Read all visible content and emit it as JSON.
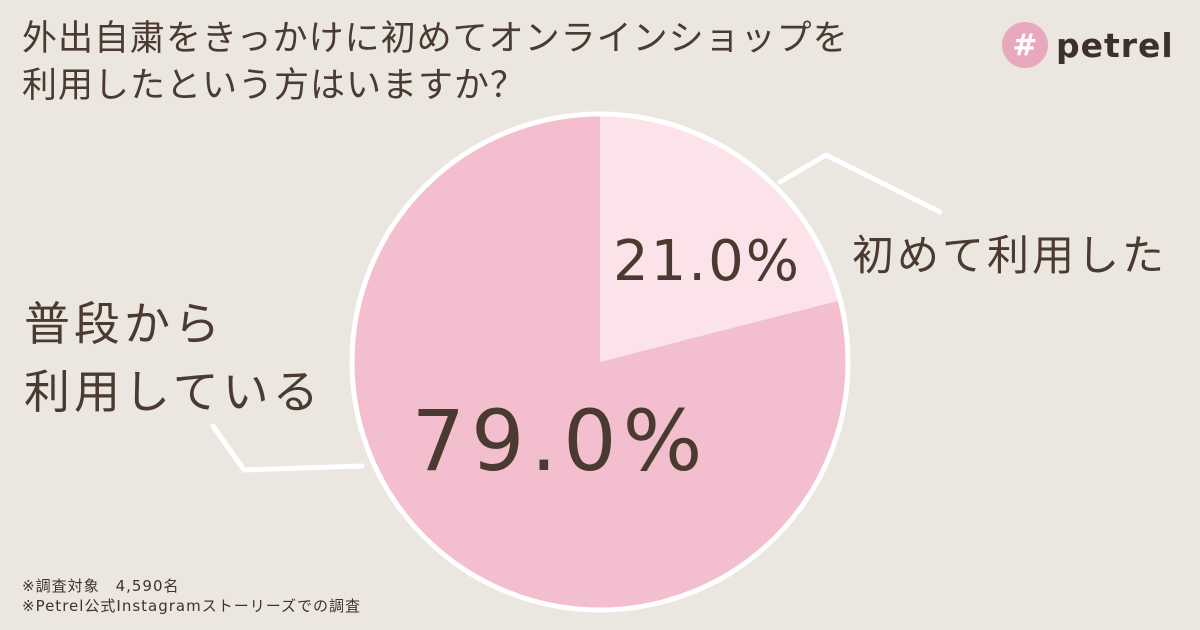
{
  "header": {
    "title_line1": "外出自粛をきっかけに初めてオンラインショップを",
    "title_line2": "利用したという方はいますか？"
  },
  "brand": {
    "icon_glyph": "#",
    "icon_name": "hash-icon",
    "name": "petrel",
    "accent_color": "#e7a9bb"
  },
  "chart_data": {
    "type": "pie",
    "start_angle_deg": 0,
    "direction": "clockwise",
    "slices": [
      {
        "label": "初めて利用した",
        "value": 21.0,
        "display": "21.0%",
        "color": "#fbe3e9"
      },
      {
        "label_line1": "普段から",
        "label_line2": "利用している",
        "value": 79.0,
        "display": "79.0%",
        "color": "#f3bfce"
      }
    ],
    "border_color": "#ffffff"
  },
  "notes": {
    "line1": "※調査対象　4,590名",
    "line2": "※Petrel公式Instagramストーリーズでの調査"
  }
}
